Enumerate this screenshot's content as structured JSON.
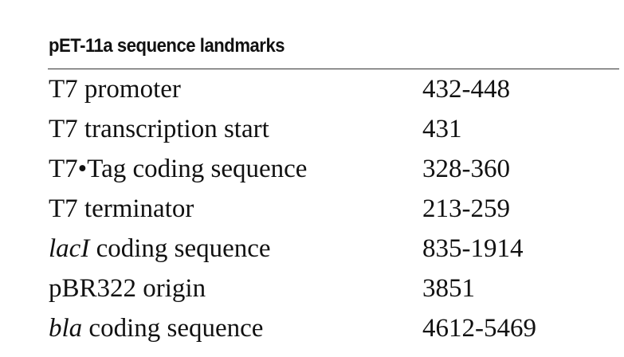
{
  "header": {
    "title": "pET-11a sequence landmarks"
  },
  "table": {
    "rows": [
      {
        "name": [
          {
            "text": "T7 promoter"
          }
        ],
        "range": "432-448"
      },
      {
        "name": [
          {
            "text": "T7 transcription start"
          }
        ],
        "range": "431"
      },
      {
        "name": [
          {
            "text": "T7•Tag coding sequence"
          }
        ],
        "range": "328-360"
      },
      {
        "name": [
          {
            "text": "T7 terminator"
          }
        ],
        "range": "213-259"
      },
      {
        "name": [
          {
            "text": "lacI",
            "italic": true
          },
          {
            "text": " coding sequence"
          }
        ],
        "range": "835-1914"
      },
      {
        "name": [
          {
            "text": "pBR322 origin"
          }
        ],
        "range": "3851"
      },
      {
        "name": [
          {
            "text": "bla",
            "italic": true
          },
          {
            "text": " coding sequence"
          }
        ],
        "range": "4612-5469"
      }
    ]
  }
}
